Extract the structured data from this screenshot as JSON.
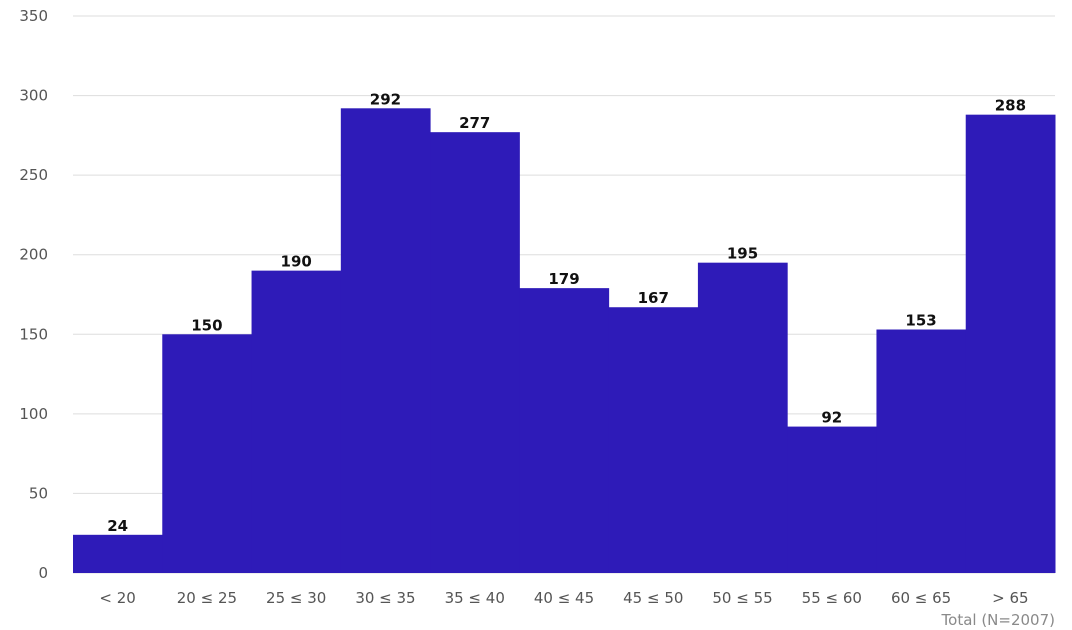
{
  "chart_data": {
    "type": "bar",
    "categories": [
      "< 20",
      "20 ≤ 25",
      "25 ≤ 30",
      "30 ≤ 35",
      "35 ≤ 40",
      "40 ≤ 45",
      "45 ≤ 50",
      "50 ≤ 55",
      "55 ≤ 60",
      "60 ≤ 65",
      "> 65"
    ],
    "values": [
      24,
      150,
      190,
      292,
      277,
      179,
      167,
      195,
      92,
      153,
      288
    ],
    "ylim": [
      0,
      350
    ],
    "yticks": [
      0,
      50,
      100,
      150,
      200,
      250,
      300,
      350
    ],
    "bar_color": "#2e1bb8",
    "grid": true,
    "footnote": "Total (N=2007)"
  }
}
